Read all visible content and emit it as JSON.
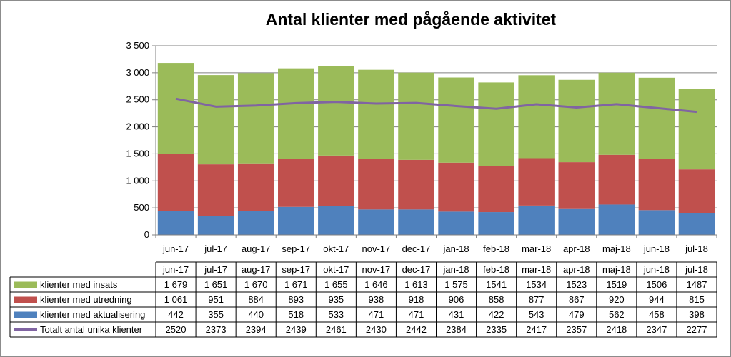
{
  "chart_data": {
    "type": "bar",
    "stacked": true,
    "title": "Antal klienter med pågående aktivitet",
    "categories": [
      "jun-17",
      "jul-17",
      "aug-17",
      "sep-17",
      "okt-17",
      "nov-17",
      "dec-17",
      "jan-18",
      "feb-18",
      "mar-18",
      "apr-18",
      "maj-18",
      "jun-18",
      "jul-18"
    ],
    "ylim": [
      0,
      3500
    ],
    "yticks": [
      "0",
      "500",
      "1 000",
      "1 500",
      "2 000",
      "2 500",
      "3 000",
      "3 500"
    ],
    "ytick_values": [
      0,
      500,
      1000,
      1500,
      2000,
      2500,
      3000,
      3500
    ],
    "grid": true,
    "legend": "table-bottom",
    "series": [
      {
        "name": "klienter med insats",
        "type": "bar",
        "color": "#9bbb59",
        "values": [
          1679,
          1651,
          1670,
          1671,
          1655,
          1646,
          1613,
          1575,
          1541,
          1534,
          1523,
          1519,
          1506,
          1487
        ],
        "labels": [
          "1 679",
          "1 651",
          "1 670",
          "1 671",
          "1 655",
          "1 646",
          "1 613",
          "1 575",
          "1541",
          "1534",
          "1523",
          "1519",
          "1506",
          "1487"
        ]
      },
      {
        "name": "klienter med utredning",
        "type": "bar",
        "color": "#c0504d",
        "values": [
          1061,
          951,
          884,
          893,
          935,
          938,
          918,
          906,
          858,
          877,
          867,
          920,
          944,
          815
        ],
        "labels": [
          "1 061",
          "951",
          "884",
          "893",
          "935",
          "938",
          "918",
          "906",
          "858",
          "877",
          "867",
          "920",
          "944",
          "815"
        ]
      },
      {
        "name": "klienter med aktualisering",
        "type": "bar",
        "color": "#4f81bd",
        "values": [
          442,
          355,
          440,
          518,
          533,
          471,
          471,
          431,
          422,
          543,
          479,
          562,
          458,
          398
        ],
        "labels": [
          "442",
          "355",
          "440",
          "518",
          "533",
          "471",
          "471",
          "431",
          "422",
          "543",
          "479",
          "562",
          "458",
          "398"
        ]
      },
      {
        "name": "Totalt antal unika klienter",
        "type": "line",
        "color": "#8064a2",
        "values": [
          2520,
          2373,
          2394,
          2439,
          2461,
          2430,
          2442,
          2384,
          2335,
          2417,
          2357,
          2418,
          2347,
          2277
        ],
        "labels": [
          "2520",
          "2373",
          "2394",
          "2439",
          "2461",
          "2430",
          "2442",
          "2384",
          "2335",
          "2417",
          "2357",
          "2418",
          "2347",
          "2277"
        ]
      }
    ]
  }
}
